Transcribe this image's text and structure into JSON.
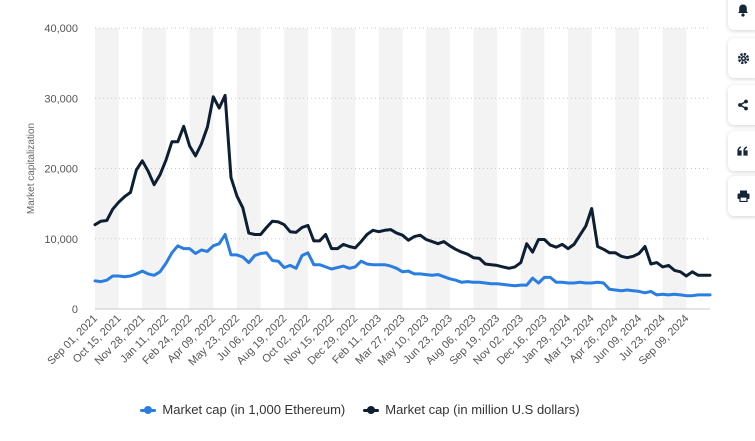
{
  "chart_data": {
    "type": "line",
    "ylabel": "Market capitalization",
    "ylim": [
      0,
      40000
    ],
    "yticks": [
      "0",
      "10,000",
      "20,000",
      "30,000",
      "40,000"
    ],
    "ytick_values": [
      0,
      10000,
      20000,
      30000,
      40000
    ],
    "grid": "horizontal dotted",
    "legend_position": "bottom",
    "x_tick_labels": [
      "Sep 01, 2021",
      "Oct 15, 2021",
      "Nov 28, 2021",
      "Jan 11, 2022",
      "Feb 24, 2022",
      "Apr 09, 2022",
      "May 23, 2022",
      "Jul 06, 2022",
      "Aug 19, 2022",
      "Oct 02, 2022",
      "Nov 15, 2022",
      "Dec 29, 2022",
      "Feb 11, 2023",
      "Mar 27, 2023",
      "May 10, 2023",
      "Jun 23, 2023",
      "Aug 06, 2023",
      "Sep 19, 2023",
      "Nov 02, 2023",
      "Dec 16, 2023",
      "Jan 29, 2024",
      "Mar 13, 2024",
      "Apr 26, 2024",
      "Jun 09, 2024",
      "Jul 23, 2024",
      "Sep 09, 2024"
    ],
    "series": [
      {
        "name": "Market cap (in 1,000 Ethereum)",
        "color": "#2a7de1",
        "values": [
          4000,
          3900,
          4100,
          4700,
          4700,
          4600,
          4700,
          5000,
          5400,
          5000,
          4800,
          5300,
          6500,
          8000,
          9000,
          8600,
          8600,
          7900,
          8400,
          8200,
          9000,
          9300,
          10600,
          7700,
          7700,
          7400,
          6600,
          7600,
          7900,
          8000,
          6900,
          6800,
          5900,
          6200,
          5800,
          7600,
          8000,
          6300,
          6300,
          6000,
          5700,
          5900,
          6100,
          5800,
          6000,
          6800,
          6400,
          6300,
          6300,
          6300,
          6100,
          5800,
          5300,
          5400,
          5000,
          5000,
          4900,
          4800,
          4900,
          4600,
          4300,
          4100,
          3800,
          3900,
          3800,
          3800,
          3700,
          3600,
          3600,
          3500,
          3400,
          3300,
          3400,
          3400,
          4400,
          3700,
          4500,
          4500,
          3800,
          3800,
          3700,
          3700,
          3800,
          3700,
          3700,
          3800,
          3700,
          2800,
          2700,
          2600,
          2700,
          2600,
          2500,
          2300,
          2500,
          2000,
          2100,
          2000,
          2100,
          2000,
          1900,
          1900,
          2000,
          2000,
          2000
        ]
      },
      {
        "name": "Market cap (in million U.S dollars)",
        "color": "#0e1f33",
        "values": [
          12000,
          12500,
          12600,
          14200,
          15200,
          16000,
          16600,
          19800,
          21100,
          19600,
          17700,
          19100,
          21200,
          23800,
          23800,
          26000,
          23200,
          21800,
          23500,
          25900,
          30200,
          28600,
          30400,
          18700,
          16100,
          14400,
          10800,
          10600,
          10600,
          11600,
          12500,
          12400,
          12000,
          11000,
          10900,
          11600,
          11900,
          9700,
          9700,
          10600,
          8600,
          8600,
          9200,
          8900,
          8700,
          9600,
          10600,
          11200,
          11000,
          11200,
          11300,
          10800,
          10500,
          9800,
          10300,
          10500,
          9900,
          9600,
          9300,
          9600,
          9000,
          8500,
          8100,
          7800,
          7300,
          7200,
          6400,
          6300,
          6200,
          6000,
          5800,
          6000,
          6600,
          9300,
          8100,
          9900,
          9900,
          9100,
          8800,
          9200,
          8600,
          9200,
          10500,
          11800,
          14300,
          8900,
          8500,
          8000,
          8000,
          7500,
          7300,
          7500,
          7900,
          8900,
          6400,
          6600,
          6000,
          6200,
          5500,
          5300,
          4700,
          5300,
          4800,
          4800,
          4800
        ]
      }
    ]
  },
  "legend": {
    "items": [
      "Market cap (in 1,000 Ethereum)",
      "Market cap (in million U.S dollars)"
    ]
  },
  "sidebar": {
    "buttons": [
      "bell-icon",
      "gear-icon",
      "share-icon",
      "quote-icon",
      "print-icon"
    ]
  }
}
